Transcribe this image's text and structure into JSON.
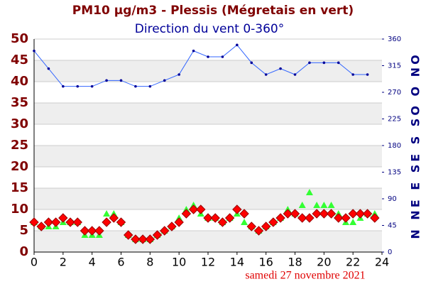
{
  "chart_data": {
    "type": "scatter-line",
    "title": "PM10 µg/m3 - Plessis (Mégretais en vert)",
    "subtitle": "Direction du vent 0-360°",
    "y2_label": "N NE E SE S SO O NO",
    "annotation": "samedi 27 novembre 2021",
    "xlim": [
      0,
      24
    ],
    "xticks": [
      0,
      2,
      4,
      6,
      8,
      10,
      12,
      14,
      16,
      18,
      20,
      22,
      24
    ],
    "ylim": [
      0,
      50
    ],
    "yticks": [
      0,
      5,
      10,
      15,
      20,
      25,
      30,
      35,
      40,
      45,
      50
    ],
    "y2lim": [
      0,
      360
    ],
    "y2ticks": [
      0,
      45,
      90,
      135,
      180,
      225,
      270,
      315,
      360
    ],
    "grid": true,
    "series": [
      {
        "marker": "triangle",
        "color": "#33ff33",
        "x": [
          0,
          0.5,
          1,
          1.5,
          2,
          2.5,
          3,
          3.5,
          4,
          4.5,
          5,
          5.5,
          6,
          6.5,
          7,
          7.5,
          8,
          8.5,
          9,
          9.5,
          10,
          10.5,
          11,
          11.5,
          12,
          12.5,
          13,
          13.5,
          14,
          14.5,
          15,
          15.5,
          16,
          16.5,
          17,
          17.5,
          18,
          18.5,
          19,
          19.5,
          20,
          20.5,
          21,
          21.5,
          22,
          22.5,
          23,
          23.5
        ],
        "values": [
          7,
          6,
          6,
          6,
          7,
          7,
          7,
          4,
          4,
          4,
          9,
          9,
          7,
          4,
          3,
          3,
          3,
          4,
          5,
          6,
          8,
          10,
          11,
          9,
          8,
          8,
          7,
          8,
          9,
          7,
          6,
          5,
          6,
          7,
          8,
          10,
          9,
          11,
          14,
          11,
          11,
          11,
          9,
          7,
          7,
          8,
          9,
          9
        ]
      },
      {
        "marker": "diamond",
        "color": "#ff0000",
        "x": [
          0,
          0.5,
          1,
          1.5,
          2,
          2.5,
          3,
          3.5,
          4,
          4.5,
          5,
          5.5,
          6,
          6.5,
          7,
          7.5,
          8,
          8.5,
          9,
          9.5,
          10,
          10.5,
          11,
          11.5,
          12,
          12.5,
          13,
          13.5,
          14,
          14.5,
          15,
          15.5,
          16,
          16.5,
          17,
          17.5,
          18,
          18.5,
          19,
          19.5,
          20,
          20.5,
          21,
          21.5,
          22,
          22.5,
          23,
          23.5
        ],
        "values": [
          7,
          6,
          7,
          7,
          8,
          7,
          7,
          5,
          5,
          5,
          7,
          8,
          7,
          4,
          3,
          3,
          3,
          4,
          5,
          6,
          7,
          9,
          10,
          10,
          8,
          8,
          7,
          8,
          10,
          9,
          6,
          5,
          6,
          7,
          8,
          9,
          9,
          8,
          8,
          9,
          9,
          9,
          8,
          8,
          9,
          9,
          9,
          8
        ]
      },
      {
        "marker": "line",
        "color": "#3366ff",
        "axis": "y2",
        "x": [
          0,
          1,
          2,
          3,
          4,
          5,
          6,
          7,
          8,
          9,
          10,
          11,
          12,
          13,
          14,
          15,
          16,
          17,
          18,
          19,
          20,
          21,
          22,
          23
        ],
        "values": [
          340,
          310,
          280,
          280,
          280,
          290,
          290,
          280,
          280,
          290,
          300,
          340,
          330,
          330,
          350,
          320,
          300,
          310,
          300,
          320,
          320,
          320,
          300,
          300
        ]
      }
    ]
  }
}
